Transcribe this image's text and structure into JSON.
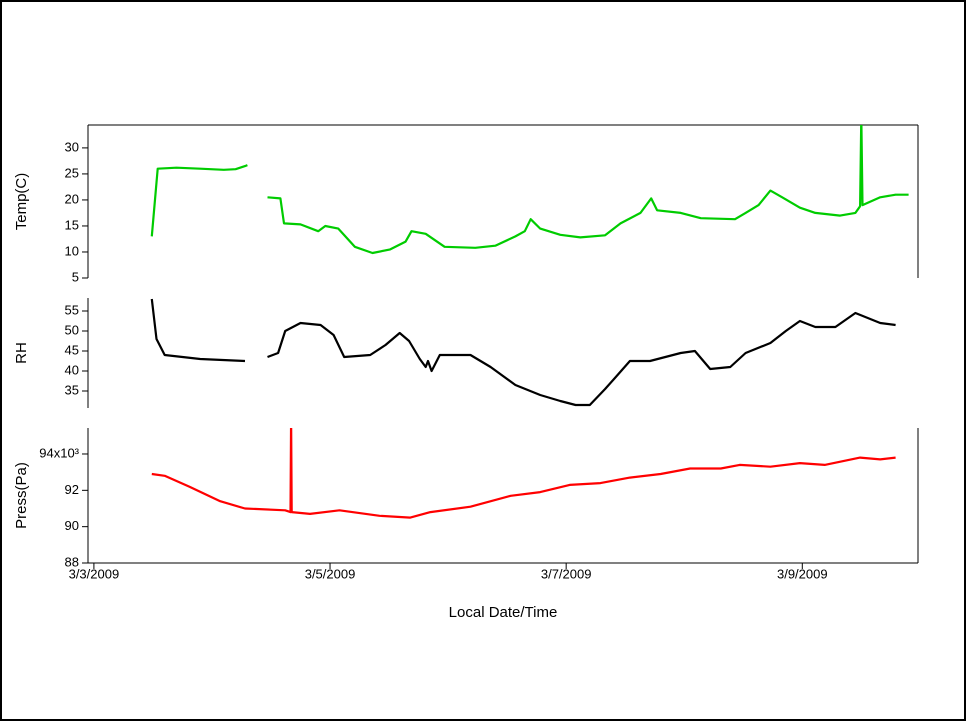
{
  "chart_data": [
    {
      "type": "line",
      "ylabel": "Temp(C)",
      "x": [
        0.49,
        0.54,
        0.7,
        0.9,
        1.1,
        1.2,
        1.28,
        1.3,
        1.38,
        1.47,
        1.58,
        1.61,
        1.75,
        1.9,
        1.96,
        2.07,
        2.21,
        2.36,
        2.51,
        2.64,
        2.69,
        2.81,
        2.97,
        3.23,
        3.4,
        3.57,
        3.65,
        3.7,
        3.78,
        3.95,
        4.12,
        4.33,
        4.46,
        4.63,
        4.72,
        4.77,
        4.97,
        5.14,
        5.43,
        5.52,
        5.63,
        5.73,
        5.83,
        5.98,
        6.11,
        6.32,
        6.45,
        6.49,
        6.5,
        6.51,
        6.66,
        6.79,
        6.9
      ],
      "series": [
        {
          "color": "#00cc00",
          "values": [
            13,
            26,
            26.2,
            26,
            25.8,
            25.9,
            26.5,
            26.7,
            null,
            20.5,
            20.3,
            15.5,
            15.3,
            14,
            15,
            14.5,
            11,
            9.8,
            10.5,
            12,
            14,
            13.5,
            11,
            10.8,
            11.2,
            13,
            14,
            16.3,
            14.5,
            13.3,
            12.8,
            13.2,
            15.5,
            17.5,
            20.3,
            18,
            17.5,
            16.5,
            16.3,
            17.5,
            19,
            21.8,
            20.5,
            18.5,
            17.5,
            17,
            17.5,
            18.8,
            36,
            19,
            20.5,
            21,
            21
          ]
        }
      ],
      "xlim": [
        -0.05,
        6.98
      ],
      "ylim": [
        5,
        34.4
      ],
      "yticks": [
        5,
        10,
        15,
        20,
        25,
        30
      ]
    },
    {
      "type": "line",
      "ylabel": "RH",
      "x": [
        0.49,
        0.53,
        0.6,
        0.9,
        1.28,
        1.38,
        1.47,
        1.56,
        1.62,
        1.75,
        1.92,
        2.03,
        2.12,
        2.34,
        2.47,
        2.59,
        2.67,
        2.76,
        2.81,
        2.83,
        2.86,
        2.93,
        3.19,
        3.36,
        3.57,
        3.78,
        3.95,
        4.08,
        4.2,
        4.33,
        4.42,
        4.54,
        4.71,
        4.97,
        5.09,
        5.22,
        5.39,
        5.52,
        5.73,
        5.86,
        5.98,
        6.11,
        6.28,
        6.45,
        6.66,
        6.79
      ],
      "series": [
        {
          "color": "#000000",
          "values": [
            58,
            48,
            44,
            43,
            42.5,
            null,
            43.5,
            44.5,
            50,
            52,
            51.5,
            49,
            43.5,
            44,
            46.5,
            49.5,
            47.5,
            43,
            41,
            42.5,
            40,
            44,
            44,
            41,
            36.5,
            34,
            32.5,
            31.5,
            31.5,
            35.5,
            38.5,
            42.5,
            42.5,
            44.5,
            45,
            40.5,
            41,
            44.5,
            47,
            50,
            52.5,
            51,
            51,
            54.5,
            52,
            51.5
          ]
        }
      ],
      "xlim": [
        -0.05,
        6.98
      ],
      "ylim": [
        30.75,
        58.25
      ],
      "yticks": [
        35,
        40,
        45,
        50,
        55
      ]
    },
    {
      "type": "line",
      "ylabel": "Press(Pa)",
      "xlabel": "Local Date/Time",
      "x": [
        0.49,
        0.6,
        0.81,
        1.07,
        1.28,
        1.62,
        1.665,
        1.67,
        1.675,
        1.83,
        2.08,
        2.42,
        2.68,
        2.85,
        3.19,
        3.53,
        3.78,
        4.03,
        4.29,
        4.54,
        4.8,
        5.05,
        5.31,
        5.47,
        5.73,
        5.98,
        6.19,
        6.49,
        6.66,
        6.79
      ],
      "series": [
        {
          "color": "#ff0000",
          "values": [
            92.9,
            92.8,
            92.2,
            91.4,
            91.0,
            90.9,
            90.8,
            96,
            90.8,
            90.7,
            90.9,
            90.6,
            90.5,
            90.8,
            91.1,
            91.7,
            91.9,
            92.3,
            92.4,
            92.7,
            92.9,
            93.2,
            93.2,
            93.4,
            93.3,
            93.5,
            93.4,
            93.8,
            93.7,
            93.8
          ]
        }
      ],
      "xlim": [
        -0.05,
        6.98
      ],
      "ylim": [
        88,
        95.43
      ],
      "yticks": [
        88,
        90,
        92,
        {
          "value": 94,
          "label": "94x10³"
        }
      ],
      "xticks": [
        {
          "value": 0,
          "label": "3/3/2009"
        },
        {
          "value": 2,
          "label": "3/5/2009"
        },
        {
          "value": 4,
          "label": "3/7/2009"
        },
        {
          "value": 6,
          "label": "3/9/2009"
        }
      ]
    }
  ]
}
